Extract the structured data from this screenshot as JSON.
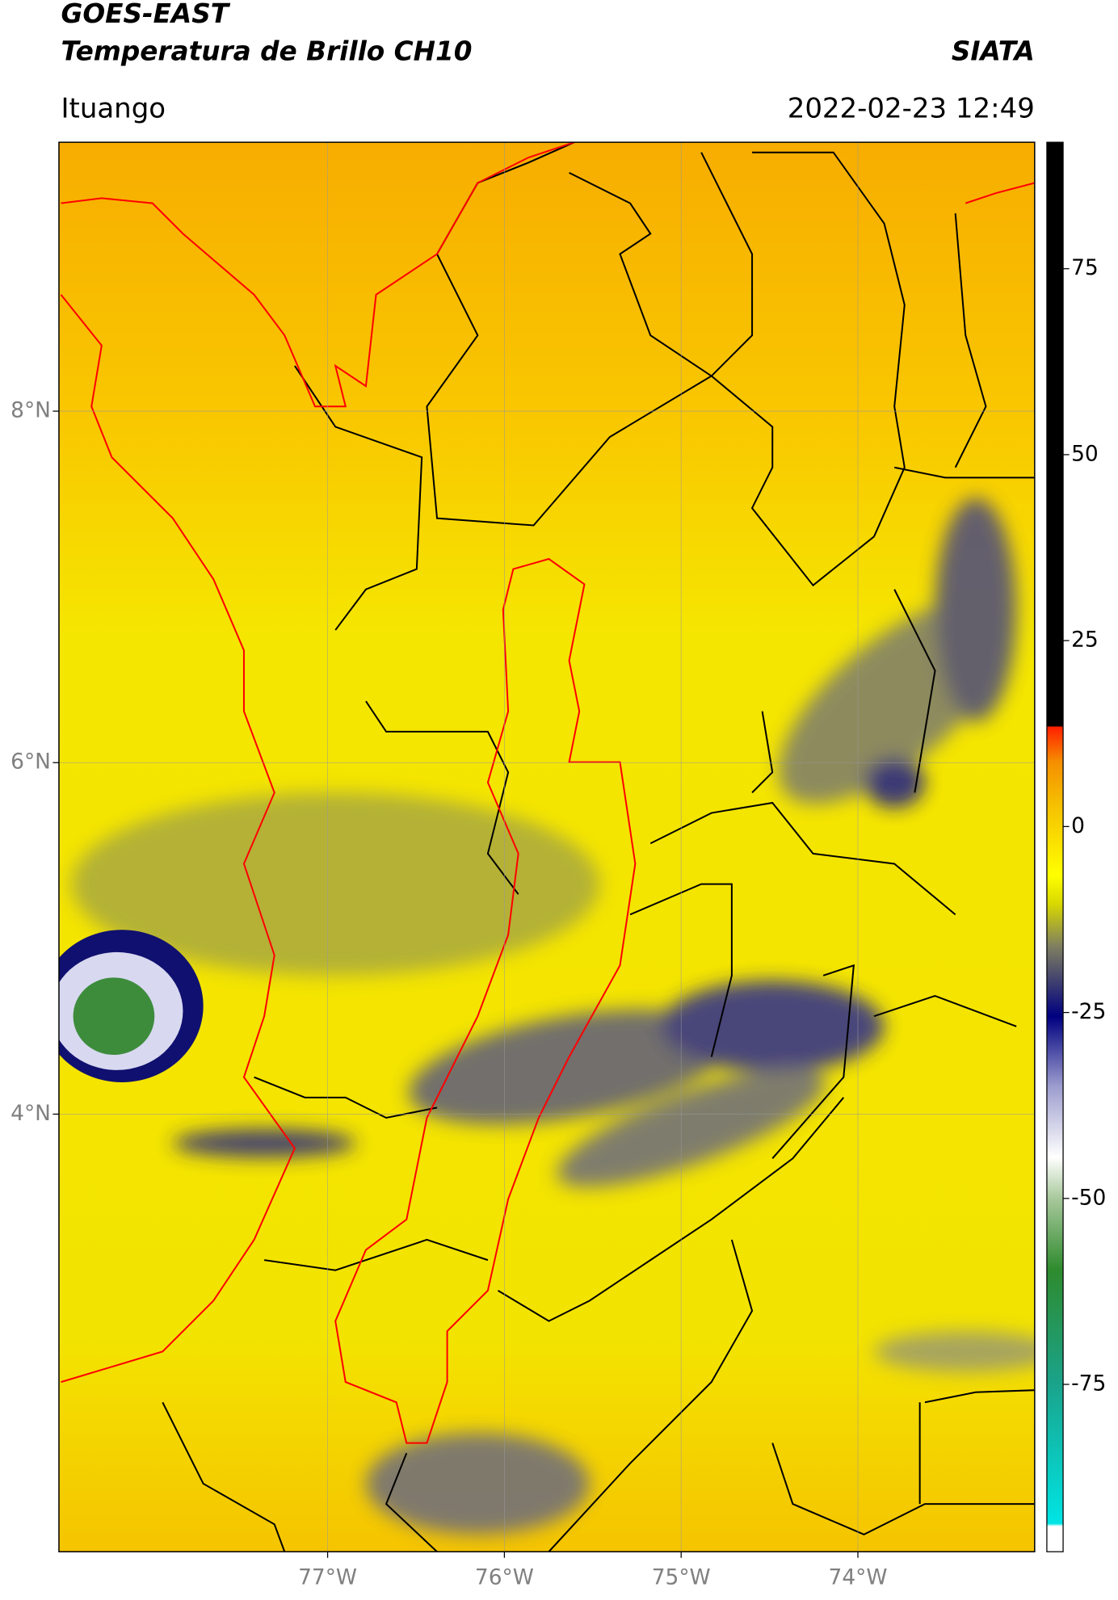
{
  "header": {
    "title": "GOES-EAST",
    "subtitle": "Temperatura de Brillo CH10",
    "brand": "SIATA",
    "location": "Ituango",
    "datetime": "2022-02-23 12:49"
  },
  "map": {
    "lon_lim": [
      -78.52,
      -73.0
    ],
    "lat_lim": [
      1.51,
      9.53
    ],
    "lon_ticks": [
      {
        "value": -77,
        "label": "77°W"
      },
      {
        "value": -76,
        "label": "76°W"
      },
      {
        "value": -75,
        "label": "75°W"
      },
      {
        "value": -74,
        "label": "74°W"
      }
    ],
    "lat_ticks": [
      {
        "value": 8,
        "label": "8°N"
      },
      {
        "value": 6,
        "label": "6°N"
      },
      {
        "value": 4,
        "label": "4°N"
      }
    ]
  },
  "colorbar": {
    "lim": [
      -97.5,
      92
    ],
    "ticks": [
      75,
      50,
      25,
      0,
      -25,
      -50,
      -75
    ]
  }
}
